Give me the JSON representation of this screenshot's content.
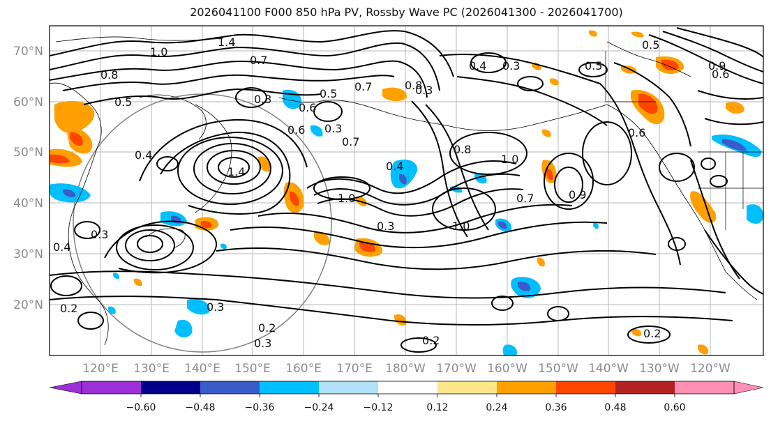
{
  "title": "2026041100 F000 850 hPa PV, Rossby Wave PC (2026041300 - 2026041700)",
  "lat_labels": [
    "70°N",
    "60°N",
    "50°N",
    "40°N",
    "30°N",
    "20°N"
  ],
  "lon_labels": [
    "120°E",
    "130°E",
    "140°E",
    "150°E",
    "160°E",
    "170°E",
    "180°W",
    "170°W",
    "160°W",
    "150°W",
    "140°W",
    "130°W",
    "120°W"
  ],
  "colorbar": {
    "ticks": [
      "−0.60",
      "−0.48",
      "−0.36",
      "−0.24",
      "−0.12",
      "0.12",
      "0.24",
      "0.36",
      "0.48",
      "0.60"
    ],
    "colors": [
      "#9b30d9",
      "#00008b",
      "#3a5cc9",
      "#00bfff",
      "#b0e0fa",
      "#ffffff",
      "#ffe68a",
      "#ffa000",
      "#ff4500",
      "#b22222",
      "#ff8fb4"
    ]
  },
  "contour_labels": [
    "1.0",
    "1.4",
    "0.7",
    "0.8",
    "0.5",
    "0.3",
    "0.4",
    "0.7",
    "0.5",
    "0.3",
    "0.6",
    "0.6",
    "0.3",
    "0.7",
    "0.8",
    "0.4",
    "1.0",
    "0.7",
    "0.8",
    "1.0",
    "0.4",
    "1.4",
    "1.0",
    "0.5",
    "0.4",
    "0.3",
    "0.5",
    "0.3",
    "0.2",
    "0.3",
    "0.2",
    "0.3",
    "0.2",
    "0.2",
    "0.9",
    "0.9",
    "0.6",
    "0.3",
    "0.6"
  ]
}
